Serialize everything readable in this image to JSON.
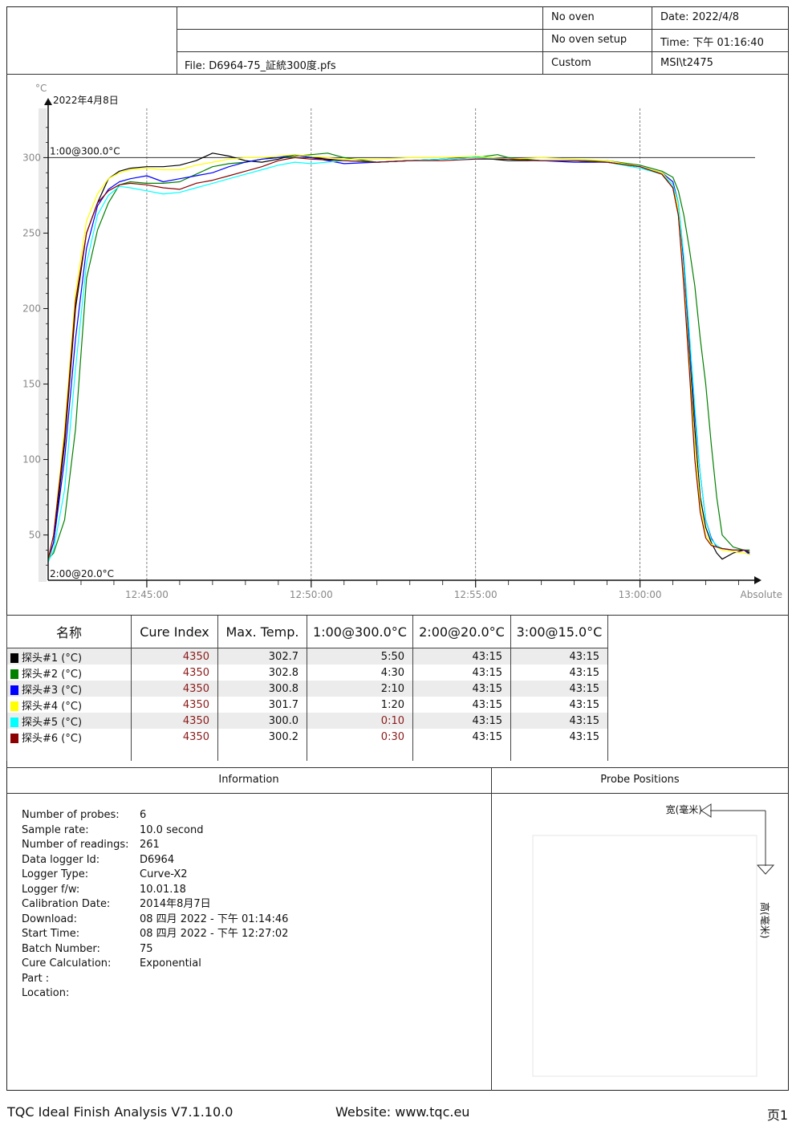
{
  "header": {
    "file": "File: D6964-75_証統300度.pfs",
    "oven": "No oven",
    "oven_setup": "No oven setup",
    "custom": "Custom",
    "date": "Date: 2022/4/8",
    "time": "Time: 下午 01:16:40",
    "user": "MSI\\t2475"
  },
  "chart_data": {
    "type": "line",
    "date_label": "2022年4月8日",
    "yunit": "°C",
    "xlabel": "Absolute",
    "ylim": [
      20,
      330
    ],
    "yticks": [
      50,
      100,
      150,
      200,
      250,
      300
    ],
    "xticks": [
      "12:45:00",
      "12:50:00",
      "12:55:00",
      "13:00:00"
    ],
    "xstart": "12:42:00",
    "xend": "13:03:30",
    "reference_lines": [
      {
        "label": "1:00@300.0°C",
        "value": 300
      },
      {
        "label": "2:00@20.0°C",
        "value": 20
      }
    ],
    "series": [
      {
        "name": "探头#1 (°C)",
        "color": "#000000",
        "x": [
          "12:42:00",
          "12:42:10",
          "12:42:30",
          "12:42:50",
          "12:43:10",
          "12:43:30",
          "12:43:50",
          "12:44:10",
          "12:44:30",
          "12:45:00",
          "12:45:30",
          "12:46:00",
          "12:46:30",
          "12:47:00",
          "12:47:30",
          "12:48:00",
          "12:48:30",
          "12:49:00",
          "12:49:30",
          "12:50:00",
          "12:51:00",
          "12:52:00",
          "12:53:00",
          "12:54:00",
          "12:55:00",
          "12:56:00",
          "12:57:00",
          "12:58:00",
          "12:59:00",
          "13:00:00",
          "13:00:40",
          "13:01:00",
          "13:01:10",
          "13:01:20",
          "13:01:30",
          "13:01:40",
          "13:01:50",
          "13:02:00",
          "13:02:10",
          "13:02:20",
          "13:02:30",
          "13:02:50",
          "13:03:10",
          "13:03:20"
        ],
        "y": [
          33,
          45,
          110,
          200,
          250,
          270,
          286,
          291,
          293,
          294,
          294,
          295,
          298,
          303,
          301,
          298,
          297,
          299,
          302,
          300,
          298,
          297,
          298,
          299,
          300,
          298,
          298,
          298,
          297,
          294,
          289,
          280,
          262,
          220,
          170,
          120,
          75,
          55,
          45,
          38,
          34,
          38,
          40,
          38
        ]
      },
      {
        "name": "探头#2 (°C)",
        "color": "#008000",
        "x": [
          "12:42:00",
          "12:42:10",
          "12:42:30",
          "12:42:50",
          "12:43:10",
          "12:43:30",
          "12:43:50",
          "12:44:10",
          "12:44:30",
          "12:45:00",
          "12:45:30",
          "12:46:00",
          "12:46:30",
          "12:47:00",
          "12:47:30",
          "12:48:00",
          "12:48:30",
          "12:49:00",
          "12:49:30",
          "12:50:00",
          "12:50:30",
          "12:51:00",
          "12:52:00",
          "12:53:00",
          "12:54:00",
          "12:55:00",
          "12:55:40",
          "12:56:00",
          "12:57:00",
          "12:58:00",
          "12:59:00",
          "13:00:00",
          "13:00:40",
          "13:01:00",
          "13:01:10",
          "13:01:20",
          "13:01:30",
          "13:01:40",
          "13:01:50",
          "13:02:00",
          "13:02:10",
          "13:02:20",
          "13:02:30",
          "13:02:50",
          "13:03:10",
          "13:03:20"
        ],
        "y": [
          34,
          38,
          60,
          120,
          220,
          252,
          270,
          282,
          284,
          283,
          283,
          284,
          289,
          294,
          296,
          297,
          299,
          300,
          301,
          302,
          303,
          300,
          297,
          298,
          299,
          300,
          302,
          300,
          298,
          298,
          298,
          295,
          291,
          287,
          278,
          262,
          240,
          215,
          180,
          150,
          110,
          75,
          50,
          42,
          40,
          40
        ]
      },
      {
        "name": "探头#3 (°C)",
        "color": "#0000ff",
        "x": [
          "12:42:00",
          "12:42:10",
          "12:42:30",
          "12:42:50",
          "12:43:10",
          "12:43:30",
          "12:43:50",
          "12:44:10",
          "12:44:30",
          "12:45:00",
          "12:45:30",
          "12:46:00",
          "12:46:30",
          "12:47:00",
          "12:47:30",
          "12:48:00",
          "12:48:30",
          "12:49:00",
          "12:49:30",
          "12:50:00",
          "12:51:00",
          "12:52:00",
          "12:53:00",
          "12:54:00",
          "12:55:00",
          "12:56:00",
          "12:57:00",
          "12:58:00",
          "12:59:00",
          "13:00:00",
          "13:00:40",
          "13:01:00",
          "13:01:10",
          "13:01:20",
          "13:01:30",
          "13:01:40",
          "13:01:50",
          "13:02:00",
          "13:02:10",
          "13:02:20",
          "13:02:30",
          "13:02:50",
          "13:03:10",
          "13:03:20"
        ],
        "y": [
          34,
          45,
          100,
          180,
          240,
          268,
          279,
          284,
          286,
          288,
          284,
          286,
          288,
          290,
          294,
          297,
          299,
          300,
          302,
          300,
          296,
          297,
          298,
          299,
          300,
          299,
          298,
          297,
          297,
          294,
          290,
          284,
          270,
          230,
          180,
          130,
          90,
          60,
          48,
          42,
          41,
          40,
          40,
          37
        ]
      },
      {
        "name": "探头#4 (°C)",
        "color": "#ffff00",
        "x": [
          "12:42:00",
          "12:42:10",
          "12:42:30",
          "12:42:50",
          "12:43:10",
          "12:43:30",
          "12:43:50",
          "12:44:10",
          "12:44:30",
          "12:45:00",
          "12:45:30",
          "12:46:00",
          "12:46:30",
          "12:47:00",
          "12:47:30",
          "12:48:00",
          "12:48:30",
          "12:49:00",
          "12:49:30",
          "12:50:00",
          "12:51:00",
          "12:52:00",
          "12:53:00",
          "12:54:00",
          "12:55:00",
          "12:56:00",
          "12:57:00",
          "12:58:00",
          "12:59:00",
          "13:00:00",
          "13:00:40",
          "13:01:00",
          "13:01:10",
          "13:01:20",
          "13:01:30",
          "13:01:40",
          "13:01:50",
          "13:02:00",
          "13:02:10",
          "13:02:20",
          "13:02:30",
          "13:02:50",
          "13:03:10",
          "13:03:20"
        ],
        "y": [
          33,
          50,
          120,
          210,
          258,
          276,
          286,
          290,
          292,
          293,
          292,
          292,
          295,
          297,
          299,
          300,
          300,
          301,
          302,
          301,
          299,
          299,
          300,
          300,
          301,
          299,
          300,
          299,
          298,
          294,
          290,
          282,
          265,
          220,
          165,
          110,
          70,
          50,
          44,
          42,
          40,
          39,
          38,
          37
        ]
      },
      {
        "name": "探头#5 (°C)",
        "color": "#00ffff",
        "x": [
          "12:42:00",
          "12:42:10",
          "12:42:30",
          "12:42:50",
          "12:43:10",
          "12:43:30",
          "12:43:50",
          "12:44:10",
          "12:44:30",
          "12:45:00",
          "12:45:30",
          "12:46:00",
          "12:46:30",
          "12:47:00",
          "12:47:30",
          "12:48:00",
          "12:48:30",
          "12:49:00",
          "12:49:30",
          "12:50:00",
          "12:51:00",
          "12:52:00",
          "12:53:00",
          "12:54:00",
          "12:55:00",
          "12:56:00",
          "12:57:00",
          "12:58:00",
          "12:59:00",
          "13:00:00",
          "13:00:40",
          "13:01:00",
          "13:01:10",
          "13:01:20",
          "13:01:30",
          "13:01:40",
          "13:01:50",
          "13:02:00",
          "13:02:10",
          "13:02:20",
          "13:02:30",
          "13:02:50",
          "13:03:10",
          "13:03:20"
        ],
        "y": [
          32,
          40,
          80,
          160,
          230,
          262,
          275,
          281,
          280,
          278,
          276,
          277,
          280,
          283,
          286,
          289,
          292,
          295,
          297,
          296,
          298,
          297,
          298,
          299,
          300,
          299,
          298,
          298,
          297,
          293,
          289,
          282,
          270,
          235,
          185,
          135,
          90,
          60,
          47,
          43,
          41,
          40,
          40,
          39
        ]
      },
      {
        "name": "探头#6 (°C)",
        "color": "#8b0000",
        "x": [
          "12:42:00",
          "12:42:10",
          "12:42:30",
          "12:42:50",
          "12:43:10",
          "12:43:30",
          "12:43:50",
          "12:44:10",
          "12:44:30",
          "12:45:00",
          "12:45:30",
          "12:46:00",
          "12:46:30",
          "12:47:00",
          "12:47:30",
          "12:48:00",
          "12:48:30",
          "12:49:00",
          "12:49:30",
          "12:50:00",
          "12:51:00",
          "12:52:00",
          "12:53:00",
          "12:54:00",
          "12:55:00",
          "12:56:00",
          "12:57:00",
          "12:58:00",
          "12:59:00",
          "13:00:00",
          "13:00:40",
          "13:01:00",
          "13:01:10",
          "13:01:20",
          "13:01:30",
          "13:01:40",
          "13:01:50",
          "13:02:00",
          "13:02:10",
          "13:02:20",
          "13:02:30",
          "13:02:50",
          "13:03:10",
          "13:03:20"
        ],
        "y": [
          34,
          50,
          115,
          205,
          250,
          270,
          278,
          282,
          283,
          282,
          280,
          279,
          283,
          285,
          288,
          291,
          294,
          298,
          300,
          299,
          298,
          297,
          298,
          298,
          299,
          299,
          298,
          298,
          297,
          294,
          289,
          280,
          262,
          215,
          160,
          100,
          65,
          48,
          43,
          42,
          41,
          40,
          40,
          39
        ]
      }
    ]
  },
  "results": {
    "headers": [
      "名称",
      "Cure Index",
      "Max. Temp.",
      "1:00@300.0°C",
      "2:00@20.0°C",
      "3:00@15.0°C"
    ],
    "rows": [
      {
        "name": "探头#1 (°C)",
        "color": "#000000",
        "cure": "4350",
        "max": "302.7",
        "t1": "5:50",
        "t1_red": false,
        "t2": "43:15",
        "t3": "43:15"
      },
      {
        "name": "探头#2 (°C)",
        "color": "#008000",
        "cure": "4350",
        "max": "302.8",
        "t1": "4:30",
        "t1_red": false,
        "t2": "43:15",
        "t3": "43:15"
      },
      {
        "name": "探头#3 (°C)",
        "color": "#0000ff",
        "cure": "4350",
        "max": "300.8",
        "t1": "2:10",
        "t1_red": false,
        "t2": "43:15",
        "t3": "43:15"
      },
      {
        "name": "探头#4 (°C)",
        "color": "#ffff00",
        "cure": "4350",
        "max": "301.7",
        "t1": "1:20",
        "t1_red": false,
        "t2": "43:15",
        "t3": "43:15"
      },
      {
        "name": "探头#5 (°C)",
        "color": "#00ffff",
        "cure": "4350",
        "max": "300.0",
        "t1": "0:10",
        "t1_red": true,
        "t2": "43:15",
        "t3": "43:15"
      },
      {
        "name": "探头#6 (°C)",
        "color": "#8b0000",
        "cure": "4350",
        "max": "300.2",
        "t1": "0:30",
        "t1_red": true,
        "t2": "43:15",
        "t3": "43:15"
      }
    ]
  },
  "information": {
    "title": "Information",
    "items": [
      {
        "label": "Number of probes:",
        "value": "6"
      },
      {
        "label": "Sample rate:",
        "value": "10.0 second"
      },
      {
        "label": "Number of readings:",
        "value": "261"
      },
      {
        "label": "Data logger Id:",
        "value": "D6964"
      },
      {
        "label": "Logger Type:",
        "value": "Curve-X2"
      },
      {
        "label": "Logger f/w:",
        "value": "10.01.18"
      },
      {
        "label": "Calibration Date:",
        "value": "2014年8月7日"
      },
      {
        "label": "Download:",
        "value": "08 四月 2022 - 下午 01:14:46"
      },
      {
        "label": "Start Time:",
        "value": "08 四月 2022 - 下午 12:27:02"
      },
      {
        "label": "Batch Number:",
        "value": "75"
      },
      {
        "label": "Cure Calculation:",
        "value": "Exponential"
      },
      {
        "label": "Part :",
        "value": ""
      },
      {
        "label": "Location:",
        "value": ""
      }
    ]
  },
  "probe_positions": {
    "title": "Probe Positions",
    "width_label": "宽(毫米)",
    "height_label": "高(毫米)"
  },
  "footer": {
    "app": "TQC Ideal Finish Analysis V7.1.10.0",
    "website": "Website: www.tqc.eu",
    "page": "页1"
  }
}
